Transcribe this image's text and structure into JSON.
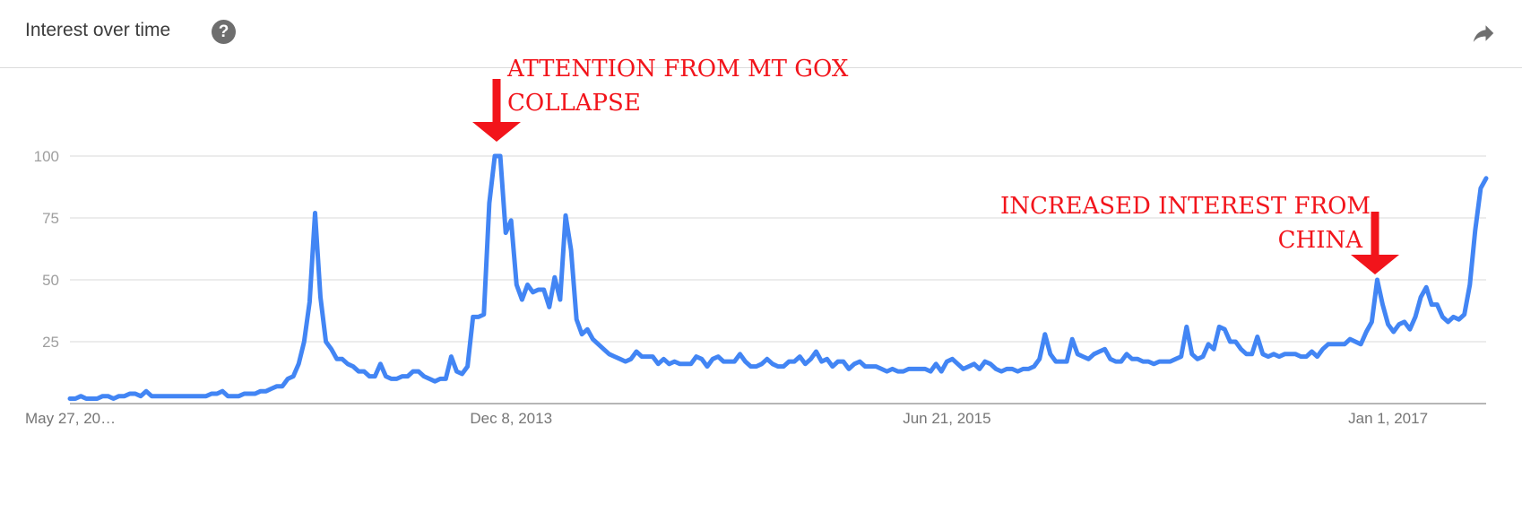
{
  "header": {
    "title": "Interest over time",
    "help_glyph": "?",
    "help_icon": "question-circle-icon",
    "share_icon": "share-arrow-icon"
  },
  "annotations": [
    {
      "line1": "ATTENTION FROM MT GOX",
      "line2": "COLLAPSE"
    },
    {
      "line1": "INCREASED INTEREST FROM",
      "line2": "CHINA"
    }
  ],
  "colors": {
    "line": "#4285f4",
    "annotation": "#f2141b",
    "grid": "#e6e6e6",
    "axis": "#9e9e9e",
    "tick_text": "#9e9e9e",
    "xlabel_text": "#757575"
  },
  "chart_data": {
    "type": "line",
    "title": "Interest over time",
    "ylim": [
      0,
      100
    ],
    "y_ticks": [
      {
        "value": 100,
        "label": "100"
      },
      {
        "value": 75,
        "label": "75"
      },
      {
        "value": 50,
        "label": "50"
      },
      {
        "value": 25,
        "label": "25"
      }
    ],
    "grid": true,
    "x_ticks": [
      {
        "index": 0,
        "label": "May 27, 20…"
      },
      {
        "index": 81,
        "label": "Dec 8, 2013"
      },
      {
        "index": 161,
        "label": "Jun 21, 2015"
      },
      {
        "index": 242,
        "label": "Jan 1, 2017"
      }
    ],
    "series": [
      {
        "values": [
          2,
          2,
          3,
          2,
          2,
          2,
          3,
          3,
          2,
          3,
          3,
          4,
          4,
          3,
          5,
          3,
          3,
          3,
          3,
          3,
          3,
          3,
          3,
          3,
          3,
          3,
          4,
          4,
          5,
          3,
          3,
          3,
          4,
          4,
          4,
          5,
          5,
          6,
          7,
          7,
          10,
          11,
          16,
          25,
          41,
          77,
          43,
          25,
          22,
          18,
          18,
          16,
          15,
          13,
          13,
          11,
          11,
          16,
          11,
          10,
          10,
          11,
          11,
          13,
          13,
          11,
          10,
          9,
          10,
          10,
          19,
          13,
          12,
          15,
          35,
          35,
          36,
          81,
          100,
          100,
          69,
          74,
          48,
          42,
          48,
          45,
          46,
          46,
          39,
          51,
          42,
          76,
          62,
          34,
          28,
          30,
          26,
          24,
          22,
          20,
          19,
          18,
          17,
          18,
          21,
          19,
          19,
          19,
          16,
          18,
          16,
          17,
          16,
          16,
          16,
          19,
          18,
          15,
          18,
          19,
          17,
          17,
          17,
          20,
          17,
          15,
          15,
          16,
          18,
          16,
          15,
          15,
          17,
          17,
          19,
          16,
          18,
          21,
          17,
          18,
          15,
          17,
          17,
          14,
          16,
          17,
          15,
          15,
          15,
          14,
          13,
          14,
          13,
          13,
          14,
          14,
          14,
          14,
          13,
          16,
          13,
          17,
          18,
          16,
          14,
          15,
          16,
          14,
          17,
          16,
          14,
          13,
          14,
          14,
          13,
          14,
          14,
          15,
          18,
          28,
          20,
          17,
          17,
          17,
          26,
          20,
          19,
          18,
          20,
          21,
          22,
          18,
          17,
          17,
          20,
          18,
          18,
          17,
          17,
          16,
          17,
          17,
          17,
          18,
          19,
          31,
          20,
          18,
          19,
          24,
          22,
          31,
          30,
          25,
          25,
          22,
          20,
          20,
          27,
          20,
          19,
          20,
          19,
          20,
          20,
          20,
          19,
          19,
          21,
          19,
          22,
          24,
          24,
          24,
          24,
          26,
          25,
          24,
          29,
          33,
          50,
          40,
          32,
          29,
          32,
          33,
          30,
          35,
          43,
          47,
          40,
          40,
          35,
          33,
          35,
          34,
          36,
          48,
          70,
          87,
          91
        ]
      }
    ]
  }
}
